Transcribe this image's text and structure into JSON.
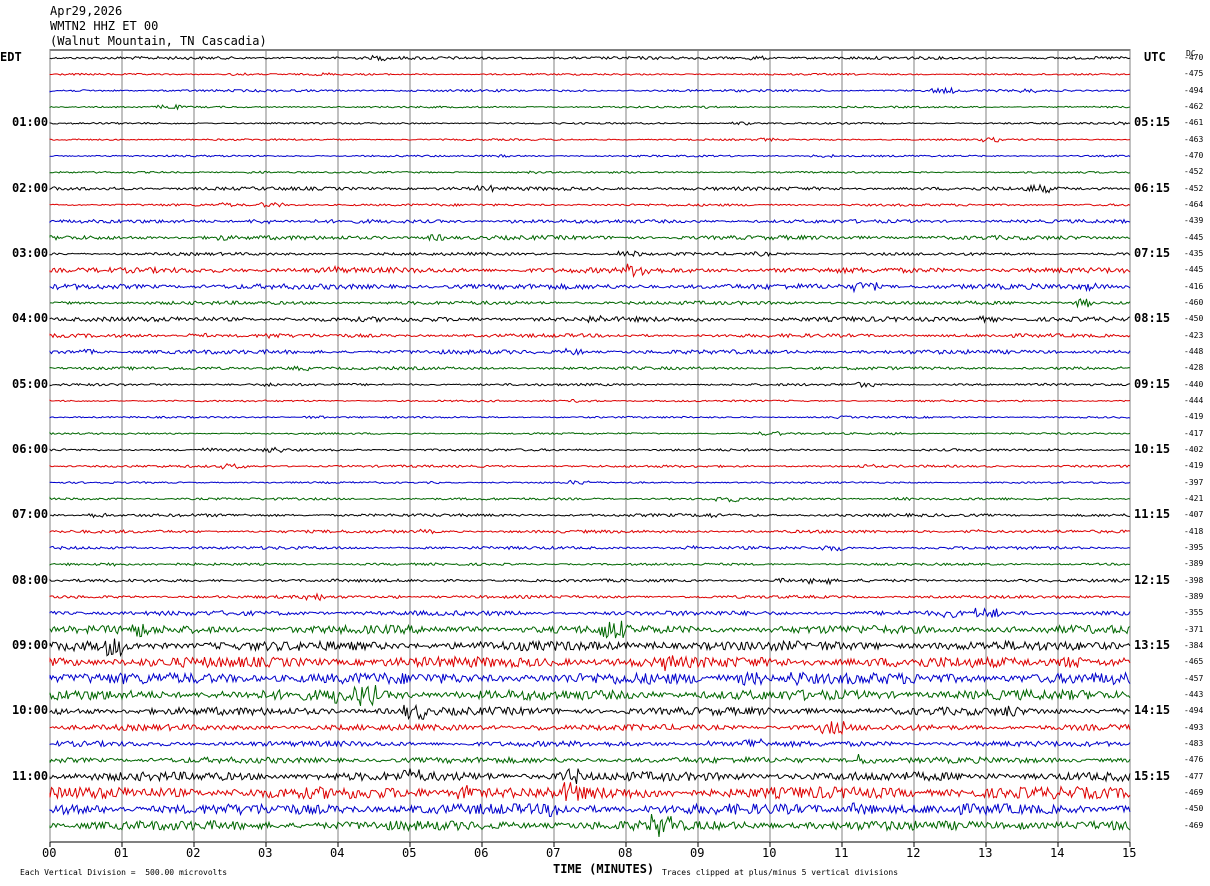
{
  "header": {
    "date": "Apr29,2026",
    "station": "WMTN2 HHZ ET 00",
    "location": "(Walnut Mountain, TN Cascadia)"
  },
  "left_tz": "EDT",
  "right_tz": "UTC",
  "dc_label": "DC",
  "footer": {
    "scale_note": "Each Vertical Division =  500.00 microvolts",
    "clip_note": "Traces clipped at plus/minus 5 vertical divisions"
  },
  "colors": {
    "series": [
      "#000000",
      "#dd0000",
      "#0000cc",
      "#006600"
    ],
    "grid": "#808080"
  },
  "chart_data": {
    "type": "line",
    "title": "",
    "xlabel": "TIME (MINUTES)",
    "xlim": [
      0,
      15
    ],
    "x_ticks": [
      "00",
      "01",
      "02",
      "03",
      "04",
      "05",
      "06",
      "07",
      "08",
      "09",
      "10",
      "11",
      "12",
      "13",
      "14",
      "15"
    ],
    "left_hour_labels": [
      "01:00",
      "02:00",
      "03:00",
      "04:00",
      "05:00",
      "06:00",
      "07:00",
      "08:00",
      "09:00",
      "10:00",
      "11:00"
    ],
    "right_hour_labels": [
      "05:15",
      "06:15",
      "07:15",
      "08:15",
      "09:15",
      "10:15",
      "11:15",
      "12:15",
      "13:15",
      "14:15",
      "15:15"
    ],
    "trace_dc_values": [
      -470,
      -475,
      -494,
      -462,
      -461,
      -463,
      -470,
      -452,
      -452,
      -464,
      -439,
      -445,
      -435,
      -445,
      -416,
      -460,
      -450,
      -423,
      -448,
      -428,
      -440,
      -444,
      -419,
      -417,
      -402,
      -419,
      -397,
      -421,
      -407,
      -418,
      -395,
      -389,
      -398,
      -389,
      -355,
      -371,
      -384,
      -465,
      -457,
      -443,
      -494,
      -493,
      -483,
      -476,
      -477,
      -469,
      -450,
      -469
    ],
    "trace_activity": [
      0.5,
      0.3,
      0.4,
      0.3,
      0.3,
      0.3,
      0.3,
      0.3,
      0.6,
      0.4,
      0.6,
      0.7,
      0.5,
      0.9,
      0.9,
      0.6,
      0.8,
      0.6,
      0.7,
      0.5,
      0.4,
      0.3,
      0.3,
      0.3,
      0.4,
      0.4,
      0.3,
      0.4,
      0.5,
      0.5,
      0.5,
      0.4,
      0.5,
      0.5,
      0.8,
      1.4,
      1.6,
      1.8,
      1.9,
      1.7,
      1.3,
      1.0,
      0.9,
      1.0,
      1.5,
      2.0,
      1.8,
      1.6
    ]
  }
}
